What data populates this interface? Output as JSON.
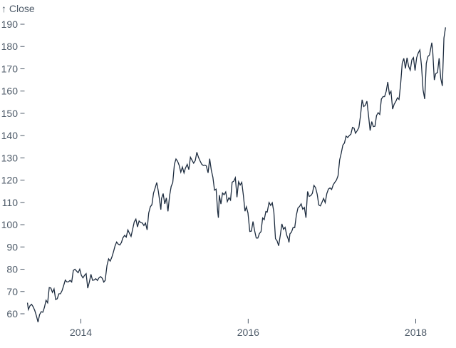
{
  "chart_data": {
    "type": "line",
    "title": "",
    "y_axis_title": "↑ Close",
    "ylabel": "Close",
    "xlabel": "",
    "legend": "none",
    "grid": false,
    "background_color": "#ffffff",
    "line_color": "#1d2c3f",
    "axis_text_color": "#4d5a68",
    "ylim": [
      55,
      192
    ],
    "y_ticks": [
      60,
      70,
      80,
      90,
      100,
      110,
      120,
      130,
      140,
      150,
      160,
      170,
      180,
      190
    ],
    "x_ticks": [
      "2014",
      "2016",
      "2018"
    ],
    "x_domain": [
      "2013-05-13",
      "2018-05-11"
    ],
    "series": [
      {
        "name": "Close",
        "points": [
          [
            "2013-05-13",
            64.96
          ],
          [
            "2013-05-17",
            61.89
          ],
          [
            "2013-05-24",
            63.59
          ],
          [
            "2013-05-31",
            64.25
          ],
          [
            "2013-06-07",
            63.12
          ],
          [
            "2013-06-14",
            61.44
          ],
          [
            "2013-06-21",
            59.07
          ],
          [
            "2013-06-28",
            56.25
          ],
          [
            "2013-07-05",
            59.63
          ],
          [
            "2013-07-12",
            60.93
          ],
          [
            "2013-07-19",
            60.71
          ],
          [
            "2013-07-26",
            62.84
          ],
          [
            "2013-08-02",
            66.08
          ],
          [
            "2013-08-09",
            64.92
          ],
          [
            "2013-08-16",
            71.76
          ],
          [
            "2013-08-23",
            71.57
          ],
          [
            "2013-08-30",
            69.6
          ],
          [
            "2013-09-06",
            71.17
          ],
          [
            "2013-09-13",
            66.41
          ],
          [
            "2013-09-20",
            66.77
          ],
          [
            "2013-09-27",
            68.96
          ],
          [
            "2013-10-04",
            69.0
          ],
          [
            "2013-10-11",
            70.4
          ],
          [
            "2013-10-18",
            72.69
          ],
          [
            "2013-10-25",
            75.14
          ],
          [
            "2013-11-01",
            74.29
          ],
          [
            "2013-11-08",
            74.37
          ],
          [
            "2013-11-15",
            74.99
          ],
          [
            "2013-11-22",
            74.26
          ],
          [
            "2013-11-29",
            79.44
          ],
          [
            "2013-12-06",
            80.0
          ],
          [
            "2013-12-13",
            79.2
          ],
          [
            "2013-12-20",
            78.43
          ],
          [
            "2013-12-27",
            80.01
          ],
          [
            "2014-01-03",
            77.28
          ],
          [
            "2014-01-10",
            76.13
          ],
          [
            "2014-01-17",
            77.24
          ],
          [
            "2014-01-24",
            78.01
          ],
          [
            "2014-01-31",
            71.51
          ],
          [
            "2014-02-07",
            74.24
          ],
          [
            "2014-02-14",
            77.71
          ],
          [
            "2014-02-21",
            75.04
          ],
          [
            "2014-02-28",
            75.18
          ],
          [
            "2014-03-07",
            75.77
          ],
          [
            "2014-03-14",
            74.96
          ],
          [
            "2014-03-21",
            76.12
          ],
          [
            "2014-03-28",
            76.69
          ],
          [
            "2014-04-04",
            75.97
          ],
          [
            "2014-04-11",
            74.23
          ],
          [
            "2014-04-17",
            74.99
          ],
          [
            "2014-04-25",
            81.71
          ],
          [
            "2014-05-02",
            84.65
          ],
          [
            "2014-05-09",
            83.65
          ],
          [
            "2014-05-16",
            85.36
          ],
          [
            "2014-05-23",
            87.73
          ],
          [
            "2014-05-30",
            90.43
          ],
          [
            "2014-06-06",
            92.22
          ],
          [
            "2014-06-13",
            91.28
          ],
          [
            "2014-06-20",
            90.91
          ],
          [
            "2014-06-27",
            91.98
          ],
          [
            "2014-07-03",
            94.03
          ],
          [
            "2014-07-11",
            95.22
          ],
          [
            "2014-07-18",
            94.43
          ],
          [
            "2014-07-25",
            97.67
          ],
          [
            "2014-08-01",
            96.13
          ],
          [
            "2014-08-08",
            94.74
          ],
          [
            "2014-08-15",
            97.98
          ],
          [
            "2014-08-22",
            101.32
          ],
          [
            "2014-08-29",
            102.5
          ],
          [
            "2014-09-05",
            98.97
          ],
          [
            "2014-09-12",
            101.66
          ],
          [
            "2014-09-19",
            100.96
          ],
          [
            "2014-09-26",
            100.75
          ],
          [
            "2014-10-03",
            99.62
          ],
          [
            "2014-10-10",
            100.73
          ],
          [
            "2014-10-17",
            97.67
          ],
          [
            "2014-10-24",
            105.22
          ],
          [
            "2014-10-31",
            108.0
          ],
          [
            "2014-11-07",
            109.01
          ],
          [
            "2014-11-14",
            114.18
          ],
          [
            "2014-11-21",
            116.47
          ],
          [
            "2014-11-28",
            118.93
          ],
          [
            "2014-12-05",
            115.0
          ],
          [
            "2014-12-12",
            109.73
          ],
          [
            "2014-12-16",
            106.75
          ],
          [
            "2014-12-19",
            111.78
          ],
          [
            "2014-12-26",
            113.99
          ],
          [
            "2015-01-02",
            109.33
          ],
          [
            "2015-01-09",
            112.01
          ],
          [
            "2015-01-16",
            105.99
          ],
          [
            "2015-01-23",
            112.98
          ],
          [
            "2015-01-30",
            117.16
          ],
          [
            "2015-02-06",
            118.93
          ],
          [
            "2015-02-13",
            127.08
          ],
          [
            "2015-02-20",
            129.5
          ],
          [
            "2015-02-27",
            128.46
          ],
          [
            "2015-03-06",
            126.6
          ],
          [
            "2015-03-13",
            123.59
          ],
          [
            "2015-03-20",
            125.9
          ],
          [
            "2015-03-27",
            123.25
          ],
          [
            "2015-04-02",
            125.32
          ],
          [
            "2015-04-10",
            127.1
          ],
          [
            "2015-04-17",
            124.75
          ],
          [
            "2015-04-24",
            130.28
          ],
          [
            "2015-05-01",
            128.95
          ],
          [
            "2015-05-08",
            127.62
          ],
          [
            "2015-05-15",
            128.77
          ],
          [
            "2015-05-22",
            132.54
          ],
          [
            "2015-05-29",
            130.28
          ],
          [
            "2015-06-05",
            128.65
          ],
          [
            "2015-06-12",
            127.17
          ],
          [
            "2015-06-19",
            126.6
          ],
          [
            "2015-06-26",
            126.75
          ],
          [
            "2015-07-02",
            126.44
          ],
          [
            "2015-07-10",
            123.28
          ],
          [
            "2015-07-17",
            129.62
          ],
          [
            "2015-07-24",
            124.5
          ],
          [
            "2015-07-31",
            121.3
          ],
          [
            "2015-08-07",
            115.52
          ],
          [
            "2015-08-14",
            115.96
          ],
          [
            "2015-08-21",
            105.76
          ],
          [
            "2015-08-24",
            103.12
          ],
          [
            "2015-08-28",
            113.29
          ],
          [
            "2015-09-04",
            109.27
          ],
          [
            "2015-09-11",
            114.21
          ],
          [
            "2015-09-18",
            113.45
          ],
          [
            "2015-09-25",
            114.71
          ],
          [
            "2015-10-02",
            110.38
          ],
          [
            "2015-10-09",
            112.12
          ],
          [
            "2015-10-16",
            111.04
          ],
          [
            "2015-10-23",
            119.08
          ],
          [
            "2015-10-30",
            119.5
          ],
          [
            "2015-11-06",
            121.06
          ],
          [
            "2015-11-13",
            112.34
          ],
          [
            "2015-11-20",
            119.3
          ],
          [
            "2015-11-27",
            117.81
          ],
          [
            "2015-12-04",
            119.03
          ],
          [
            "2015-12-11",
            113.18
          ],
          [
            "2015-12-18",
            106.03
          ],
          [
            "2015-12-24",
            108.03
          ],
          [
            "2015-12-31",
            105.26
          ],
          [
            "2016-01-08",
            96.96
          ],
          [
            "2016-01-15",
            97.13
          ],
          [
            "2016-01-22",
            101.42
          ],
          [
            "2016-01-29",
            97.34
          ],
          [
            "2016-02-05",
            94.02
          ],
          [
            "2016-02-12",
            93.99
          ],
          [
            "2016-02-19",
            96.04
          ],
          [
            "2016-02-26",
            96.91
          ],
          [
            "2016-03-04",
            103.01
          ],
          [
            "2016-03-11",
            102.26
          ],
          [
            "2016-03-18",
            105.92
          ],
          [
            "2016-03-24",
            105.67
          ],
          [
            "2016-04-01",
            109.99
          ],
          [
            "2016-04-08",
            108.66
          ],
          [
            "2016-04-15",
            109.85
          ],
          [
            "2016-04-22",
            105.68
          ],
          [
            "2016-04-29",
            93.74
          ],
          [
            "2016-05-06",
            92.72
          ],
          [
            "2016-05-13",
            90.52
          ],
          [
            "2016-05-20",
            95.22
          ],
          [
            "2016-05-27",
            100.35
          ],
          [
            "2016-06-03",
            97.92
          ],
          [
            "2016-06-10",
            98.83
          ],
          [
            "2016-06-17",
            95.33
          ],
          [
            "2016-06-24",
            93.4
          ],
          [
            "2016-06-27",
            92.04
          ],
          [
            "2016-07-01",
            95.89
          ],
          [
            "2016-07-08",
            96.68
          ],
          [
            "2016-07-15",
            98.78
          ],
          [
            "2016-07-22",
            98.66
          ],
          [
            "2016-07-29",
            104.21
          ],
          [
            "2016-08-05",
            107.48
          ],
          [
            "2016-08-12",
            108.18
          ],
          [
            "2016-08-19",
            109.36
          ],
          [
            "2016-08-26",
            106.94
          ],
          [
            "2016-09-02",
            107.73
          ],
          [
            "2016-09-09",
            103.13
          ],
          [
            "2016-09-16",
            114.92
          ],
          [
            "2016-09-23",
            112.71
          ],
          [
            "2016-09-30",
            113.05
          ],
          [
            "2016-10-07",
            114.06
          ],
          [
            "2016-10-14",
            117.63
          ],
          [
            "2016-10-21",
            116.6
          ],
          [
            "2016-10-28",
            113.72
          ],
          [
            "2016-11-04",
            108.84
          ],
          [
            "2016-11-11",
            108.43
          ],
          [
            "2016-11-18",
            110.06
          ],
          [
            "2016-11-25",
            111.79
          ],
          [
            "2016-12-02",
            109.9
          ],
          [
            "2016-12-09",
            113.95
          ],
          [
            "2016-12-16",
            115.97
          ],
          [
            "2016-12-23",
            116.52
          ],
          [
            "2016-12-30",
            115.82
          ],
          [
            "2017-01-06",
            117.91
          ],
          [
            "2017-01-13",
            119.04
          ],
          [
            "2017-01-20",
            120.0
          ],
          [
            "2017-01-27",
            121.95
          ],
          [
            "2017-02-03",
            129.08
          ],
          [
            "2017-02-10",
            132.12
          ],
          [
            "2017-02-17",
            135.72
          ],
          [
            "2017-02-24",
            136.66
          ],
          [
            "2017-03-03",
            139.78
          ],
          [
            "2017-03-10",
            139.14
          ],
          [
            "2017-03-17",
            139.99
          ],
          [
            "2017-03-24",
            140.64
          ],
          [
            "2017-03-31",
            143.66
          ],
          [
            "2017-04-07",
            143.34
          ],
          [
            "2017-04-13",
            141.05
          ],
          [
            "2017-04-21",
            142.27
          ],
          [
            "2017-04-28",
            143.65
          ],
          [
            "2017-05-05",
            148.96
          ],
          [
            "2017-05-12",
            156.1
          ],
          [
            "2017-05-19",
            153.06
          ],
          [
            "2017-05-26",
            153.61
          ],
          [
            "2017-06-02",
            155.45
          ],
          [
            "2017-06-09",
            148.98
          ],
          [
            "2017-06-16",
            142.27
          ],
          [
            "2017-06-23",
            146.28
          ],
          [
            "2017-06-30",
            144.02
          ],
          [
            "2017-07-07",
            144.18
          ],
          [
            "2017-07-14",
            149.04
          ],
          [
            "2017-07-21",
            150.27
          ],
          [
            "2017-07-28",
            149.5
          ],
          [
            "2017-08-04",
            156.39
          ],
          [
            "2017-08-11",
            157.48
          ],
          [
            "2017-08-18",
            157.5
          ],
          [
            "2017-08-25",
            159.86
          ],
          [
            "2017-09-01",
            164.05
          ],
          [
            "2017-09-08",
            158.63
          ],
          [
            "2017-09-15",
            159.88
          ],
          [
            "2017-09-22",
            151.89
          ],
          [
            "2017-09-29",
            154.12
          ],
          [
            "2017-10-06",
            155.3
          ],
          [
            "2017-10-13",
            156.99
          ],
          [
            "2017-10-20",
            156.25
          ],
          [
            "2017-10-27",
            163.05
          ],
          [
            "2017-11-03",
            172.5
          ],
          [
            "2017-11-10",
            174.67
          ],
          [
            "2017-11-17",
            170.15
          ],
          [
            "2017-11-24",
            174.97
          ],
          [
            "2017-12-01",
            171.05
          ],
          [
            "2017-12-08",
            169.37
          ],
          [
            "2017-12-15",
            173.97
          ],
          [
            "2017-12-22",
            175.01
          ],
          [
            "2017-12-29",
            169.23
          ],
          [
            "2018-01-05",
            175.0
          ],
          [
            "2018-01-12",
            177.09
          ],
          [
            "2018-01-19",
            178.46
          ],
          [
            "2018-01-26",
            171.51
          ],
          [
            "2018-02-02",
            160.5
          ],
          [
            "2018-02-09",
            156.41
          ],
          [
            "2018-02-16",
            172.43
          ],
          [
            "2018-02-23",
            175.5
          ],
          [
            "2018-03-02",
            176.21
          ],
          [
            "2018-03-09",
            179.98
          ],
          [
            "2018-03-12",
            181.72
          ],
          [
            "2018-03-16",
            178.02
          ],
          [
            "2018-03-23",
            164.94
          ],
          [
            "2018-03-29",
            167.78
          ],
          [
            "2018-04-06",
            168.38
          ],
          [
            "2018-04-13",
            174.73
          ],
          [
            "2018-04-20",
            165.72
          ],
          [
            "2018-04-27",
            162.32
          ],
          [
            "2018-05-04",
            183.83
          ],
          [
            "2018-05-11",
            188.59
          ]
        ]
      }
    ]
  }
}
